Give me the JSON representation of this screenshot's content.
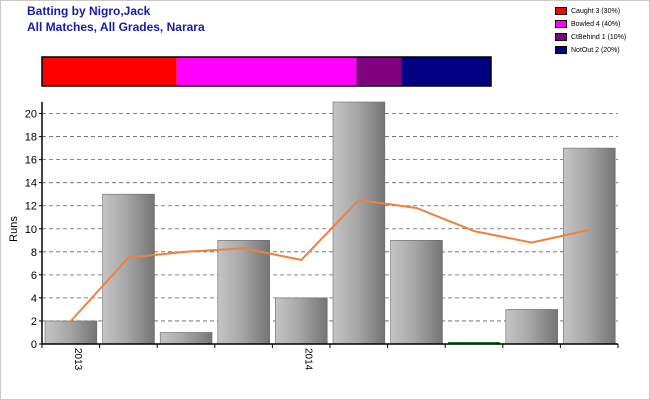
{
  "header": {
    "title": "Batting by Nigro,Jack",
    "subtitle": "All Matches, All Grades, Narara"
  },
  "legend": {
    "items": [
      {
        "label": "Caught 3 (30%)",
        "color": "#ff0000"
      },
      {
        "label": "Bowled 4 (40%)",
        "color": "#ff00ff"
      },
      {
        "label": "CtBehind 1 (10%)",
        "color": "#800080"
      },
      {
        "label": "NotOut 2 (20%)",
        "color": "#000080"
      }
    ]
  },
  "dismissals": {
    "segments": [
      {
        "label": "Caught",
        "value": 3,
        "color": "#ff0000"
      },
      {
        "label": "Bowled",
        "value": 4,
        "color": "#ff00ff"
      },
      {
        "label": "CtBehind",
        "value": 1,
        "color": "#800080"
      },
      {
        "label": "NotOut",
        "value": 2,
        "color": "#000080"
      }
    ]
  },
  "chart_data": {
    "type": "bar",
    "ylabel": "Runs",
    "ylim": [
      0,
      21
    ],
    "yticks": [
      0,
      2,
      4,
      6,
      8,
      10,
      12,
      14,
      16,
      18,
      20
    ],
    "grid": true,
    "x_tick_labels": [
      {
        "label": "2013",
        "index": 0
      },
      {
        "label": "2014",
        "index": 4
      }
    ],
    "series": [
      {
        "values": [
          2,
          13,
          1,
          9,
          4,
          21,
          9,
          0,
          3,
          17
        ],
        "color": "#a0a0a0"
      },
      {
        "values": [
          2,
          7.5,
          8,
          8.3,
          7.3,
          12.5,
          11.8,
          9.8,
          8.8,
          9.9
        ],
        "color": "#ee8040"
      }
    ]
  }
}
